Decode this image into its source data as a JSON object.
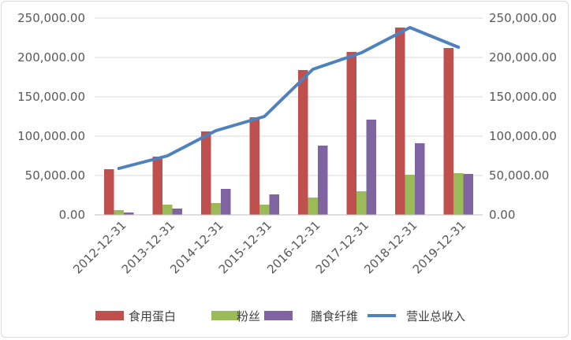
{
  "chart_data": {
    "type": "bar",
    "categories": [
      "2012-12-31",
      "2013-12-31",
      "2014-12-31",
      "2015-12-31",
      "2016-12-31",
      "2017-12-31",
      "2018-12-31",
      "2019-12-31"
    ],
    "series": [
      {
        "name": "食用蛋白",
        "type": "bar",
        "axis": "left",
        "color": "#c0504d",
        "values": [
          58000,
          74000,
          106000,
          124000,
          184000,
          207000,
          238000,
          212000
        ]
      },
      {
        "name": "粉丝",
        "type": "bar",
        "axis": "left",
        "color": "#9bbb59",
        "values": [
          6000,
          13000,
          15000,
          13000,
          22000,
          30000,
          51000,
          53000
        ]
      },
      {
        "name": "膳食纤维",
        "type": "bar",
        "axis": "left",
        "color": "#8064a2",
        "values": [
          3000,
          8000,
          33000,
          26000,
          88000,
          121000,
          91000,
          52000
        ]
      },
      {
        "name": "营业总收入",
        "type": "line",
        "axis": "right",
        "color": "#4f81bd",
        "values": [
          59000,
          75000,
          107000,
          125000,
          185000,
          206000,
          238000,
          213000
        ]
      }
    ],
    "y_left": {
      "ticks": [
        "0.00",
        "50,000.00",
        "100,000.00",
        "150,000.00",
        "200,000.00",
        "250,000.00"
      ],
      "ylim": [
        0,
        250000
      ]
    },
    "y_right": {
      "ticks": [
        "0.00",
        "50,000.00",
        "100,000.00",
        "150,000.00",
        "200,000.00",
        "250,000.00"
      ],
      "ylim": [
        0,
        250000
      ]
    },
    "grid": true,
    "legend": "bottom"
  }
}
